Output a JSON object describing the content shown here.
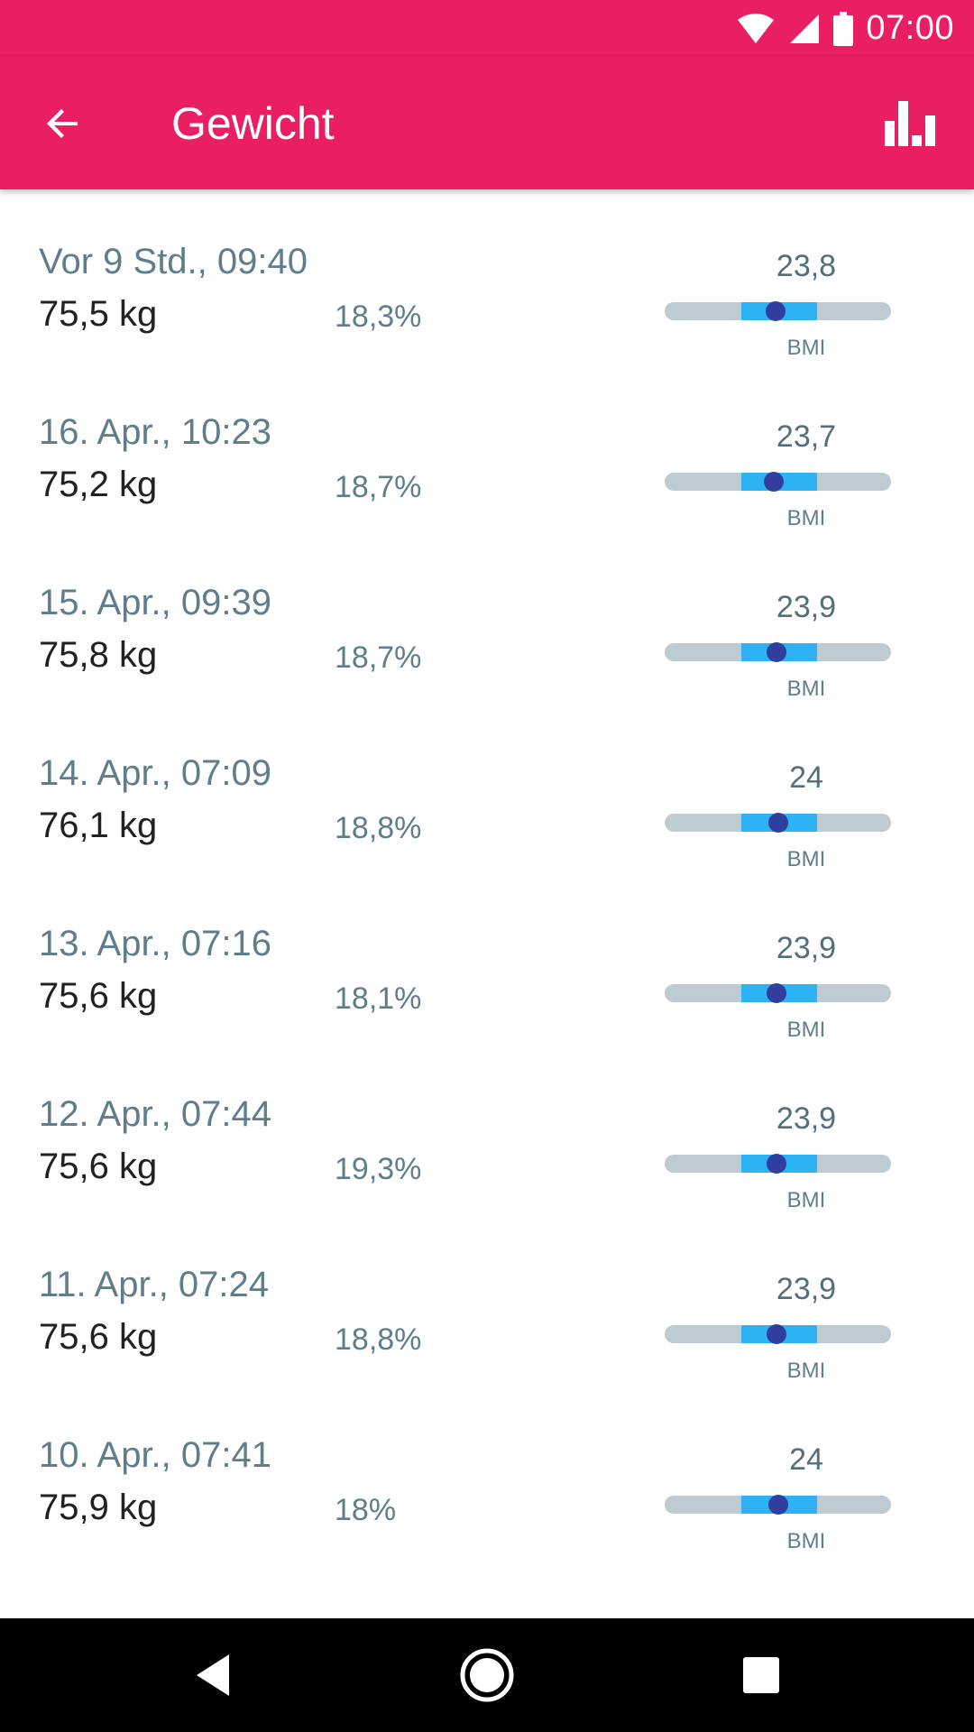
{
  "status_bar": {
    "time": "07:00",
    "icons": [
      "wifi-icon",
      "cell-signal-icon",
      "battery-icon"
    ]
  },
  "app_bar": {
    "title": "Gewicht",
    "back_icon": "arrow-back-icon",
    "chart_icon": "bar-chart-icon"
  },
  "colors": {
    "primary": "#E91E63",
    "bmi_track": "#BFCBD3",
    "bmi_normal_range": "#2DB2F4",
    "bmi_marker": "#303F9F",
    "secondary_text": "#607D8B"
  },
  "entries": [
    {
      "date": "Vor 9 Std., 09:40",
      "weight": "75,5 kg",
      "fat": "18,3%",
      "bmi": "23,8",
      "bmi_label": "BMI",
      "bmi_number": 23.8
    },
    {
      "date": "16. Apr., 10:23",
      "weight": "75,2 kg",
      "fat": "18,7%",
      "bmi": "23,7",
      "bmi_label": "BMI",
      "bmi_number": 23.7
    },
    {
      "date": "15. Apr., 09:39",
      "weight": "75,8 kg",
      "fat": "18,7%",
      "bmi": "23,9",
      "bmi_label": "BMI",
      "bmi_number": 23.9
    },
    {
      "date": "14. Apr., 07:09",
      "weight": "76,1 kg",
      "fat": "18,8%",
      "bmi": "24",
      "bmi_label": "BMI",
      "bmi_number": 24.0
    },
    {
      "date": "13. Apr., 07:16",
      "weight": "75,6 kg",
      "fat": "18,1%",
      "bmi": "23,9",
      "bmi_label": "BMI",
      "bmi_number": 23.9
    },
    {
      "date": "12. Apr., 07:44",
      "weight": "75,6 kg",
      "fat": "19,3%",
      "bmi": "23,9",
      "bmi_label": "BMI",
      "bmi_number": 23.9
    },
    {
      "date": "11. Apr., 07:24",
      "weight": "75,6 kg",
      "fat": "18,8%",
      "bmi": "23,9",
      "bmi_label": "BMI",
      "bmi_number": 23.9
    },
    {
      "date": "10. Apr., 07:41",
      "weight": "75,9 kg",
      "fat": "18%",
      "bmi": "24",
      "bmi_label": "BMI",
      "bmi_number": 24.0
    }
  ],
  "nav_bar": {
    "back": "nav-back-icon",
    "home": "nav-home-icon",
    "recents": "nav-recents-icon"
  }
}
